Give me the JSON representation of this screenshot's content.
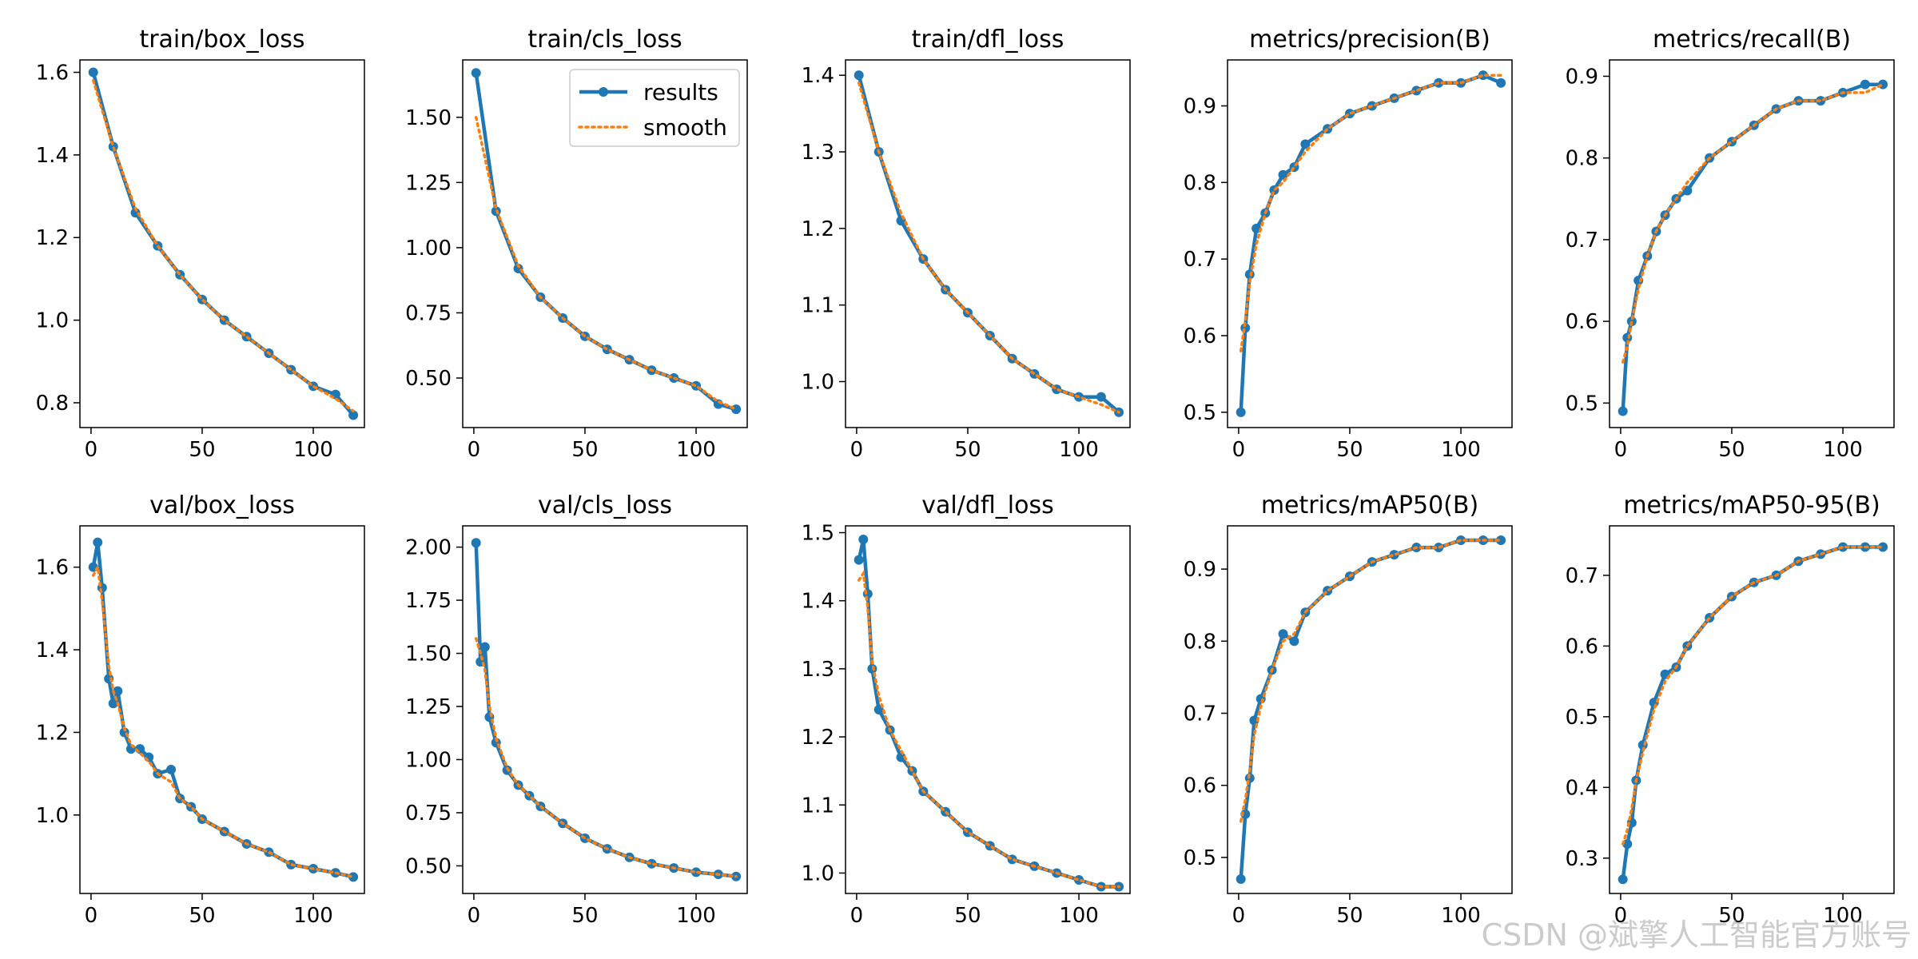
{
  "colors": {
    "results": "#1f77b4",
    "smooth": "#ff7f0e",
    "axes": "#000000"
  },
  "watermark": "CSDN @斌擎人工智能官方账号",
  "chart_data": [
    {
      "type": "line",
      "title": "train/box_loss",
      "xlim": [
        -5,
        123
      ],
      "ylim": [
        0.74,
        1.63
      ],
      "xticks": [
        0,
        50,
        100
      ],
      "yticks": [
        0.8,
        1.0,
        1.2,
        1.4,
        1.6
      ],
      "ytick_labels": [
        "0.8",
        "1.0",
        "1.2",
        "1.4",
        "1.6"
      ],
      "x": [
        1,
        10,
        20,
        30,
        40,
        50,
        60,
        70,
        80,
        90,
        100,
        110,
        118
      ],
      "series": [
        {
          "name": "results",
          "values": [
            1.6,
            1.42,
            1.26,
            1.18,
            1.11,
            1.05,
            1.0,
            0.96,
            0.92,
            0.88,
            0.84,
            0.82,
            0.77
          ]
        },
        {
          "name": "smooth",
          "values": [
            1.58,
            1.42,
            1.27,
            1.18,
            1.11,
            1.05,
            1.0,
            0.96,
            0.92,
            0.88,
            0.84,
            0.81,
            0.78
          ]
        }
      ]
    },
    {
      "type": "line",
      "title": "train/cls_loss",
      "xlim": [
        -5,
        123
      ],
      "ylim": [
        0.31,
        1.72
      ],
      "xticks": [
        0,
        50,
        100
      ],
      "yticks": [
        0.5,
        0.75,
        1.0,
        1.25,
        1.5
      ],
      "ytick_labels": [
        "0.50",
        "0.75",
        "1.00",
        "1.25",
        "1.50"
      ],
      "x": [
        1,
        10,
        20,
        30,
        40,
        50,
        60,
        70,
        80,
        90,
        100,
        110,
        118
      ],
      "series": [
        {
          "name": "results",
          "values": [
            1.67,
            1.14,
            0.92,
            0.81,
            0.73,
            0.66,
            0.61,
            0.57,
            0.53,
            0.5,
            0.47,
            0.4,
            0.38
          ]
        },
        {
          "name": "smooth",
          "values": [
            1.5,
            1.15,
            0.93,
            0.81,
            0.73,
            0.66,
            0.61,
            0.57,
            0.53,
            0.5,
            0.47,
            0.41,
            0.38
          ]
        }
      ]
    },
    {
      "type": "line",
      "title": "train/dfl_loss",
      "xlim": [
        -5,
        123
      ],
      "ylim": [
        0.94,
        1.42
      ],
      "xticks": [
        0,
        50,
        100
      ],
      "yticks": [
        1.0,
        1.1,
        1.2,
        1.3,
        1.4
      ],
      "ytick_labels": [
        "1.0",
        "1.1",
        "1.2",
        "1.3",
        "1.4"
      ],
      "x": [
        1,
        10,
        20,
        30,
        40,
        50,
        60,
        70,
        80,
        90,
        100,
        110,
        118
      ],
      "series": [
        {
          "name": "results",
          "values": [
            1.4,
            1.3,
            1.21,
            1.16,
            1.12,
            1.09,
            1.06,
            1.03,
            1.01,
            0.99,
            0.98,
            0.98,
            0.96
          ]
        },
        {
          "name": "smooth",
          "values": [
            1.39,
            1.3,
            1.22,
            1.16,
            1.12,
            1.09,
            1.06,
            1.03,
            1.01,
            0.99,
            0.98,
            0.97,
            0.96
          ]
        }
      ]
    },
    {
      "type": "line",
      "title": "metrics/precision(B)",
      "xlim": [
        -5,
        123
      ],
      "ylim": [
        0.48,
        0.96
      ],
      "xticks": [
        0,
        50,
        100
      ],
      "yticks": [
        0.5,
        0.6,
        0.7,
        0.8,
        0.9
      ],
      "ytick_labels": [
        "0.5",
        "0.6",
        "0.7",
        "0.8",
        "0.9"
      ],
      "x": [
        1,
        3,
        5,
        8,
        12,
        16,
        20,
        25,
        30,
        40,
        50,
        60,
        70,
        80,
        90,
        100,
        110,
        118
      ],
      "series": [
        {
          "name": "results",
          "values": [
            0.5,
            0.61,
            0.68,
            0.74,
            0.76,
            0.79,
            0.81,
            0.82,
            0.85,
            0.87,
            0.89,
            0.9,
            0.91,
            0.92,
            0.93,
            0.93,
            0.94,
            0.93
          ]
        },
        {
          "name": "smooth",
          "values": [
            0.58,
            0.62,
            0.67,
            0.72,
            0.76,
            0.79,
            0.8,
            0.82,
            0.84,
            0.87,
            0.89,
            0.9,
            0.91,
            0.92,
            0.93,
            0.93,
            0.94,
            0.94
          ]
        }
      ]
    },
    {
      "type": "line",
      "title": "metrics/recall(B)",
      "xlim": [
        -5,
        123
      ],
      "ylim": [
        0.47,
        0.92
      ],
      "xticks": [
        0,
        50,
        100
      ],
      "yticks": [
        0.5,
        0.6,
        0.7,
        0.8,
        0.9
      ],
      "ytick_labels": [
        "0.5",
        "0.6",
        "0.7",
        "0.8",
        "0.9"
      ],
      "x": [
        1,
        3,
        5,
        8,
        12,
        16,
        20,
        25,
        30,
        40,
        50,
        60,
        70,
        80,
        90,
        100,
        110,
        118
      ],
      "series": [
        {
          "name": "results",
          "values": [
            0.49,
            0.58,
            0.6,
            0.65,
            0.68,
            0.71,
            0.73,
            0.75,
            0.76,
            0.8,
            0.82,
            0.84,
            0.86,
            0.87,
            0.87,
            0.88,
            0.89,
            0.89
          ]
        },
        {
          "name": "smooth",
          "values": [
            0.55,
            0.57,
            0.6,
            0.64,
            0.68,
            0.71,
            0.73,
            0.75,
            0.77,
            0.8,
            0.82,
            0.84,
            0.86,
            0.87,
            0.87,
            0.88,
            0.88,
            0.89
          ]
        }
      ]
    },
    {
      "type": "line",
      "title": "val/box_loss",
      "xlim": [
        -5,
        123
      ],
      "ylim": [
        0.81,
        1.7
      ],
      "xticks": [
        0,
        50,
        100
      ],
      "yticks": [
        1.0,
        1.2,
        1.4,
        1.6
      ],
      "ytick_labels": [
        "1.0",
        "1.2",
        "1.4",
        "1.6"
      ],
      "x": [
        1,
        3,
        5,
        8,
        10,
        12,
        15,
        18,
        22,
        26,
        30,
        36,
        40,
        45,
        50,
        60,
        70,
        80,
        90,
        100,
        110,
        118
      ],
      "series": [
        {
          "name": "results",
          "values": [
            1.6,
            1.66,
            1.55,
            1.33,
            1.27,
            1.3,
            1.2,
            1.16,
            1.16,
            1.14,
            1.1,
            1.11,
            1.04,
            1.02,
            0.99,
            0.96,
            0.93,
            0.91,
            0.88,
            0.87,
            0.86,
            0.85
          ]
        },
        {
          "name": "smooth",
          "values": [
            1.58,
            1.6,
            1.52,
            1.36,
            1.3,
            1.27,
            1.21,
            1.17,
            1.15,
            1.13,
            1.1,
            1.08,
            1.04,
            1.02,
            0.99,
            0.96,
            0.93,
            0.91,
            0.88,
            0.87,
            0.86,
            0.85
          ]
        }
      ]
    },
    {
      "type": "line",
      "title": "val/cls_loss",
      "xlim": [
        -5,
        123
      ],
      "ylim": [
        0.37,
        2.1
      ],
      "xticks": [
        0,
        50,
        100
      ],
      "yticks": [
        0.5,
        0.75,
        1.0,
        1.25,
        1.5,
        1.75,
        2.0
      ],
      "ytick_labels": [
        "0.50",
        "0.75",
        "1.00",
        "1.25",
        "1.50",
        "1.75",
        "2.00"
      ],
      "x": [
        1,
        3,
        5,
        7,
        10,
        15,
        20,
        25,
        30,
        40,
        50,
        60,
        70,
        80,
        90,
        100,
        110,
        118
      ],
      "series": [
        {
          "name": "results",
          "values": [
            2.02,
            1.46,
            1.53,
            1.2,
            1.08,
            0.95,
            0.88,
            0.83,
            0.78,
            0.7,
            0.63,
            0.58,
            0.54,
            0.51,
            0.49,
            0.47,
            0.46,
            0.45
          ]
        },
        {
          "name": "smooth",
          "values": [
            1.57,
            1.5,
            1.42,
            1.25,
            1.1,
            0.96,
            0.88,
            0.83,
            0.78,
            0.7,
            0.63,
            0.58,
            0.54,
            0.51,
            0.49,
            0.47,
            0.46,
            0.45
          ]
        }
      ]
    },
    {
      "type": "line",
      "title": "val/dfl_loss",
      "xlim": [
        -5,
        123
      ],
      "ylim": [
        0.97,
        1.51
      ],
      "xticks": [
        0,
        50,
        100
      ],
      "yticks": [
        1.0,
        1.1,
        1.2,
        1.3,
        1.4,
        1.5
      ],
      "ytick_labels": [
        "1.0",
        "1.1",
        "1.2",
        "1.3",
        "1.4",
        "1.5"
      ],
      "x": [
        1,
        3,
        5,
        7,
        10,
        15,
        20,
        25,
        30,
        40,
        50,
        60,
        70,
        80,
        90,
        100,
        110,
        118
      ],
      "series": [
        {
          "name": "results",
          "values": [
            1.46,
            1.49,
            1.41,
            1.3,
            1.24,
            1.21,
            1.17,
            1.15,
            1.12,
            1.09,
            1.06,
            1.04,
            1.02,
            1.01,
            1.0,
            0.99,
            0.98,
            0.98
          ]
        },
        {
          "name": "smooth",
          "values": [
            1.43,
            1.44,
            1.39,
            1.31,
            1.26,
            1.21,
            1.18,
            1.15,
            1.12,
            1.09,
            1.06,
            1.04,
            1.02,
            1.01,
            1.0,
            0.99,
            0.98,
            0.98
          ]
        }
      ]
    },
    {
      "type": "line",
      "title": "metrics/mAP50(B)",
      "xlim": [
        -5,
        123
      ],
      "ylim": [
        0.45,
        0.96
      ],
      "xticks": [
        0,
        50,
        100
      ],
      "yticks": [
        0.5,
        0.6,
        0.7,
        0.8,
        0.9
      ],
      "ytick_labels": [
        "0.5",
        "0.6",
        "0.7",
        "0.8",
        "0.9"
      ],
      "x": [
        1,
        3,
        5,
        7,
        10,
        15,
        20,
        25,
        30,
        40,
        50,
        60,
        70,
        80,
        90,
        100,
        110,
        118
      ],
      "series": [
        {
          "name": "results",
          "values": [
            0.47,
            0.56,
            0.61,
            0.69,
            0.72,
            0.76,
            0.81,
            0.8,
            0.84,
            0.87,
            0.89,
            0.91,
            0.92,
            0.93,
            0.93,
            0.94,
            0.94,
            0.94
          ]
        },
        {
          "name": "smooth",
          "values": [
            0.55,
            0.58,
            0.62,
            0.67,
            0.71,
            0.76,
            0.8,
            0.81,
            0.84,
            0.87,
            0.89,
            0.91,
            0.92,
            0.93,
            0.93,
            0.94,
            0.94,
            0.94
          ]
        }
      ]
    },
    {
      "type": "line",
      "title": "metrics/mAP50-95(B)",
      "xlim": [
        -5,
        123
      ],
      "ylim": [
        0.25,
        0.77
      ],
      "xticks": [
        0,
        50,
        100
      ],
      "yticks": [
        0.3,
        0.4,
        0.5,
        0.6,
        0.7
      ],
      "ytick_labels": [
        "0.3",
        "0.4",
        "0.5",
        "0.6",
        "0.7"
      ],
      "x": [
        1,
        3,
        5,
        7,
        10,
        15,
        20,
        25,
        30,
        40,
        50,
        60,
        70,
        80,
        90,
        100,
        110,
        118
      ],
      "series": [
        {
          "name": "results",
          "values": [
            0.27,
            0.32,
            0.35,
            0.41,
            0.46,
            0.52,
            0.56,
            0.57,
            0.6,
            0.64,
            0.67,
            0.69,
            0.7,
            0.72,
            0.73,
            0.74,
            0.74,
            0.74
          ]
        },
        {
          "name": "smooth",
          "values": [
            0.32,
            0.34,
            0.37,
            0.41,
            0.45,
            0.51,
            0.55,
            0.57,
            0.6,
            0.64,
            0.67,
            0.69,
            0.7,
            0.72,
            0.73,
            0.74,
            0.74,
            0.74
          ]
        }
      ]
    }
  ],
  "legend": {
    "panel": 1,
    "placement": "upper-right",
    "items": [
      "results",
      "smooth"
    ]
  }
}
